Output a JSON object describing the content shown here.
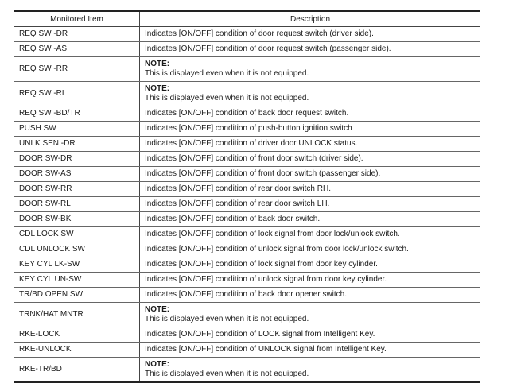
{
  "header": {
    "item": "Monitored Item",
    "description": "Description"
  },
  "note_label": "NOTE:",
  "rows": [
    {
      "item": "REQ SW -DR",
      "description": "Indicates [ON/OFF] condition of door request switch (driver side)."
    },
    {
      "item": "REQ SW -AS",
      "description": "Indicates [ON/OFF] condition of door request switch (passenger side)."
    },
    {
      "item": "REQ SW -RR",
      "note": "NOTE:",
      "description": "This is displayed even when it is not equipped."
    },
    {
      "item": "REQ SW -RL",
      "note": "NOTE:",
      "description": "This is displayed even when it is not equipped."
    },
    {
      "item": "REQ SW -BD/TR",
      "description": "Indicates [ON/OFF] condition of back door request switch."
    },
    {
      "item": "PUSH SW",
      "description": "Indicates [ON/OFF] condition of push-button ignition switch"
    },
    {
      "item": "UNLK SEN -DR",
      "description": "Indicates [ON/OFF] condition of driver door UNLOCK status."
    },
    {
      "item": "DOOR SW-DR",
      "description": "Indicates [ON/OFF] condition of front door switch (driver side)."
    },
    {
      "item": "DOOR SW-AS",
      "description": "Indicates [ON/OFF] condition of front door switch (passenger side)."
    },
    {
      "item": "DOOR SW-RR",
      "description": "Indicates [ON/OFF] condition of rear door switch RH."
    },
    {
      "item": "DOOR SW-RL",
      "description": "Indicates [ON/OFF] condition of rear door switch LH."
    },
    {
      "item": "DOOR SW-BK",
      "description": "Indicates [ON/OFF] condition of back door switch."
    },
    {
      "item": "CDL LOCK SW",
      "description": "Indicates [ON/OFF] condition of lock signal from door lock/unlock switch."
    },
    {
      "item": "CDL UNLOCK SW",
      "description": "Indicates [ON/OFF] condition of unlock signal from door lock/unlock switch."
    },
    {
      "item": "KEY CYL LK-SW",
      "description": "Indicates [ON/OFF] condition of lock signal from door key cylinder."
    },
    {
      "item": "KEY CYL UN-SW",
      "description": "Indicates [ON/OFF] condition of unlock signal from door key cylinder."
    },
    {
      "item": "TR/BD OPEN SW",
      "description": "Indicates [ON/OFF] condition of back door opener switch."
    },
    {
      "item": "TRNK/HAT MNTR",
      "note": "NOTE:",
      "description": "This is displayed even when it is not equipped."
    },
    {
      "item": "RKE-LOCK",
      "description": "Indicates [ON/OFF] condition of LOCK signal from Intelligent Key."
    },
    {
      "item": "RKE-UNLOCK",
      "description": "Indicates [ON/OFF] condition of UNLOCK signal from Intelligent Key."
    },
    {
      "item": "RKE-TR/BD",
      "note": "NOTE:",
      "description": "This is displayed even when it is not equipped."
    }
  ]
}
